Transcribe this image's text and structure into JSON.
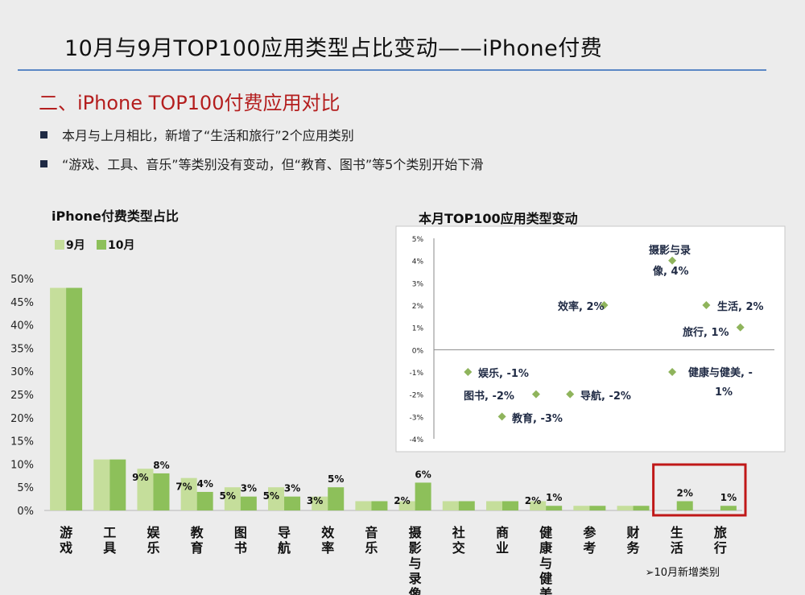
{
  "slide": {
    "title": "10月与9月TOP100应用类型占比变动——iPhone付费",
    "section_title": "二、iPhone TOP100付费应用对比",
    "bullets": [
      "本月与上月相比，新增了“生活和旅行”2个应用类别",
      "“游戏、工具、音乐”等类别没有变动，但“教育、图书”等5个类别开始下滑"
    ],
    "new_category_note": "➢10月新增类别"
  },
  "colors": {
    "title_rule": "#5b87c5",
    "section_title": "#b41e1e",
    "sep": "#c5de9b",
    "oct": "#8dc05a",
    "scatter_point": "#8fb45c",
    "highlight_box": "#c01818"
  },
  "chart_data": [
    {
      "type": "bar",
      "title": "iPhone付费类型占比",
      "categories": [
        "游戏",
        "工具",
        "娱乐",
        "教育",
        "图书",
        "导航",
        "效率",
        "音乐",
        "摄影与录像",
        "社交",
        "商业",
        "健康与健美",
        "参考",
        "财务",
        "生活",
        "旅行"
      ],
      "series": [
        {
          "name": "9月",
          "values": [
            48,
            11,
            9,
            7,
            5,
            5,
            3,
            2,
            2,
            2,
            2,
            2,
            1,
            1,
            0,
            0
          ]
        },
        {
          "name": "10月",
          "values": [
            48,
            11,
            8,
            4,
            3,
            3,
            5,
            2,
            6,
            2,
            2,
            1,
            1,
            1,
            2,
            1
          ]
        }
      ],
      "data_labels": [
        {
          "category": "娱乐",
          "sep": "9%",
          "oct": "8%"
        },
        {
          "category": "教育",
          "sep": "7%",
          "oct": "4%"
        },
        {
          "category": "图书",
          "sep": "5%",
          "oct": "3%"
        },
        {
          "category": "导航",
          "sep": "5%",
          "oct": "3%"
        },
        {
          "category": "效率",
          "sep": "3%",
          "oct": "5%"
        },
        {
          "category": "摄影与录像",
          "sep": "2%",
          "oct": "6%"
        },
        {
          "category": "健康与健美",
          "sep": "2%",
          "oct": "1%"
        },
        {
          "category": "生活",
          "sep": "",
          "oct": "2%"
        },
        {
          "category": "旅行",
          "sep": "",
          "oct": "1%"
        }
      ],
      "ylim": [
        0,
        50
      ],
      "yticks": [
        "0%",
        "5%",
        "10%",
        "15%",
        "20%",
        "25%",
        "30%",
        "35%",
        "40%",
        "45%",
        "50%"
      ],
      "legend": "top-left",
      "highlighted_categories": [
        "生活",
        "旅行"
      ]
    },
    {
      "type": "scatter",
      "title": "本月TOP100应用类型变动",
      "points": [
        {
          "label": "摄影与录像, 4%",
          "x": 7,
          "y": 4
        },
        {
          "label": "效率, 2%",
          "x": 5,
          "y": 2
        },
        {
          "label": "生活, 2%",
          "x": 8,
          "y": 2
        },
        {
          "label": "旅行, 1%",
          "x": 9,
          "y": 1
        },
        {
          "label": "娱乐, -1%",
          "x": 1,
          "y": -1
        },
        {
          "label": "健康与健美, -1%",
          "x": 7,
          "y": -1
        },
        {
          "label": "图书, -2%",
          "x": 3,
          "y": -2
        },
        {
          "label": "导航, -2%",
          "x": 4,
          "y": -2
        },
        {
          "label": "教育, -3%",
          "x": 2,
          "y": -3
        }
      ],
      "ylim": [
        -4,
        5
      ],
      "yticks": [
        "-4%",
        "-3%",
        "-2%",
        "-1%",
        "0%",
        "1%",
        "2%",
        "3%",
        "4%",
        "5%"
      ]
    }
  ]
}
